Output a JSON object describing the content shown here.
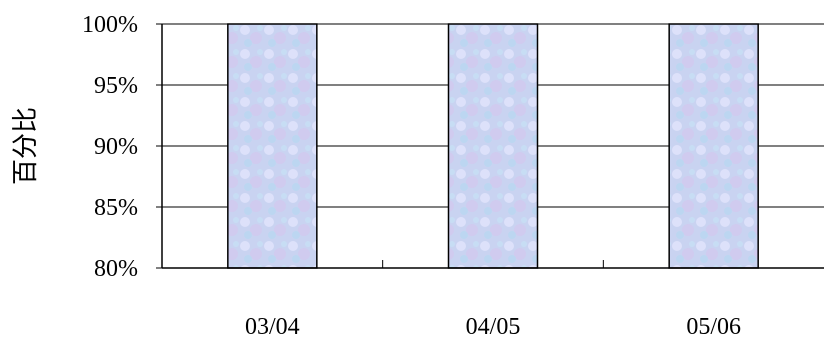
{
  "chart_data": {
    "type": "bar",
    "title": "",
    "xlabel": "",
    "ylabel": "百分比",
    "categories": [
      "03/04",
      "04/05",
      "05/06"
    ],
    "values": [
      100,
      100,
      100
    ],
    "ylim": [
      80,
      100
    ],
    "yticks": [
      80,
      85,
      90,
      95,
      100
    ],
    "ytick_labels": [
      "80%",
      "85%",
      "90%",
      "95%",
      "100%"
    ],
    "grid": true,
    "legend": "none",
    "bar_fill": "#c8d2f0",
    "bar_stroke": "#000000"
  }
}
